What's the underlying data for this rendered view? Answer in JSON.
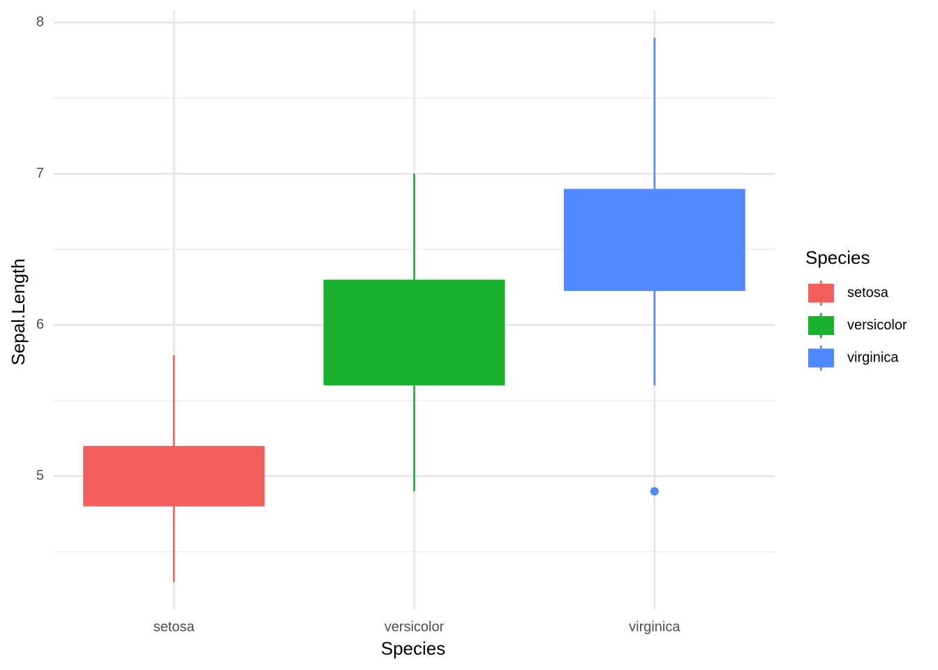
{
  "chart_data": {
    "type": "box",
    "x_label": "Species",
    "y_label": "Sepal.Length",
    "categories": [
      "setosa",
      "versicolor",
      "virginica"
    ],
    "series": [
      {
        "name": "setosa",
        "color": "#F35F5B",
        "min": 4.3,
        "q1": 4.8,
        "q3": 5.2,
        "max": 5.8,
        "outliers": []
      },
      {
        "name": "versicolor",
        "color": "#1AB22D",
        "min": 4.9,
        "q1": 5.6,
        "q3": 6.3,
        "max": 7.0,
        "outliers": []
      },
      {
        "name": "virginica",
        "color": "#5088FF",
        "min": 5.6,
        "q1": 6.225,
        "q3": 6.9,
        "max": 7.9,
        "outliers": [
          4.9
        ]
      }
    ],
    "ylim": [
      4.12,
      8.08
    ],
    "yticks": [
      5,
      6,
      7,
      8
    ],
    "minor_yticks": [
      4.5,
      5.5,
      6.5,
      7.5
    ],
    "grid": true,
    "legend": {
      "title": "Species",
      "position": "right"
    }
  }
}
